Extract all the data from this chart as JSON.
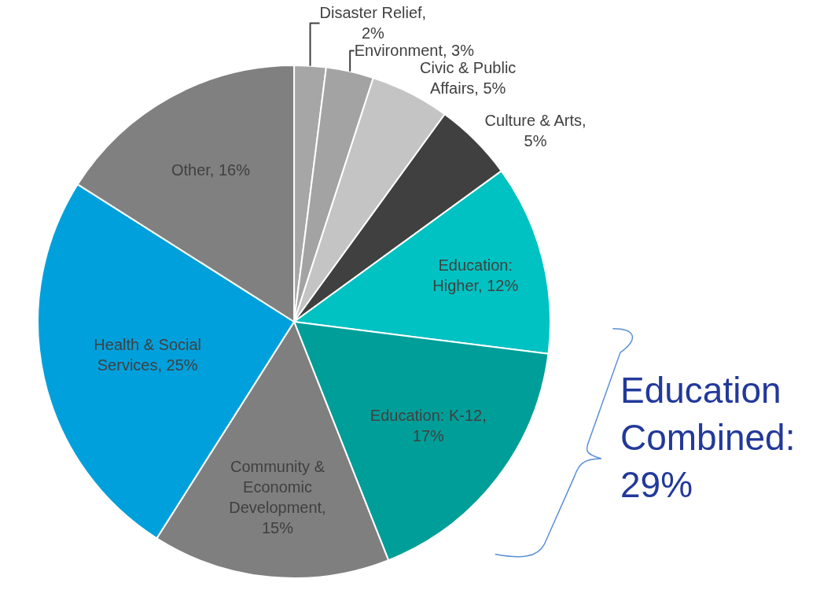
{
  "chart_data": {
    "type": "pie",
    "categories": [
      "Disaster Relief,\n2%",
      "Environment, 3%",
      "Civic & Public\nAffairs, 5%",
      "Culture & Arts,\n5%",
      "Education:\nHigher, 12%",
      "Education: K-12,\n17%",
      "Community &\nEconomic\nDevelopment,\n15%",
      "Health & Social\nServices, 25%",
      "Other, 16%"
    ],
    "values": [
      2,
      3,
      5,
      5,
      12,
      17,
      15,
      25,
      16
    ],
    "colors": [
      "#a6a6a6",
      "#a3a3a3",
      "#c4c4c4",
      "#404040",
      "#00c2c2",
      "#009e99",
      "#7f7f7f",
      "#00a0dc",
      "#808080"
    ],
    "annotations": [
      "Education\nCombined:\n29%"
    ],
    "legend": false
  }
}
